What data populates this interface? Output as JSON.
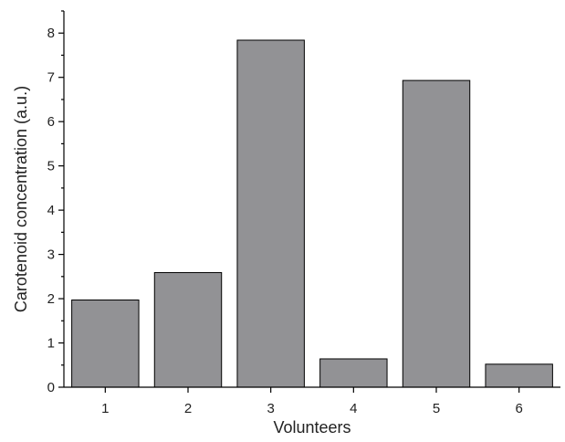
{
  "chart_data": {
    "type": "bar",
    "categories": [
      "1",
      "2",
      "3",
      "4",
      "5",
      "6"
    ],
    "values": [
      1.97,
      2.59,
      7.84,
      0.64,
      6.93,
      0.52
    ],
    "title": "",
    "xlabel": "Volunteers",
    "ylabel": "Carotenoid concentration (a.u.)",
    "ylim": [
      0,
      8.5
    ],
    "yticks": [
      0,
      1,
      2,
      3,
      4,
      5,
      6,
      7,
      8
    ],
    "grid": false,
    "bar_color": "#929295",
    "bar_edge_color": "#000000"
  }
}
